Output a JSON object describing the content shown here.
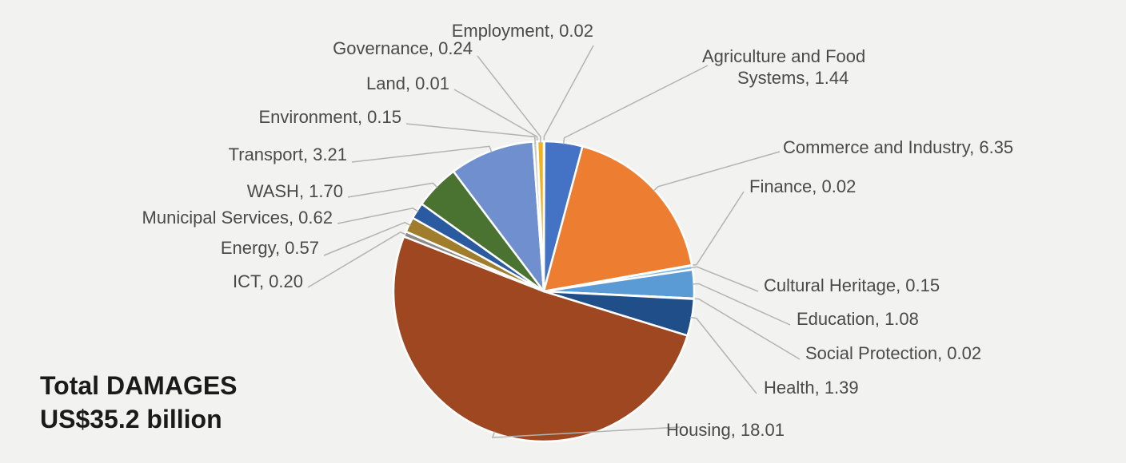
{
  "chart_data": {
    "type": "pie",
    "unit": "US$ billion",
    "slices": [
      {
        "label": "Employment",
        "value": 0.02,
        "color": "#2e5f8f"
      },
      {
        "label": "Agriculture and Food Systems",
        "value": 1.44,
        "color": "#4472c4"
      },
      {
        "label": "Commerce and Industry",
        "value": 6.35,
        "color": "#ed7d31"
      },
      {
        "label": "Finance",
        "value": 0.02,
        "color": "#ffc000"
      },
      {
        "label": "Cultural Heritage",
        "value": 0.15,
        "color": "#7fb6e3"
      },
      {
        "label": "Education",
        "value": 1.08,
        "color": "#5b9bd5"
      },
      {
        "label": "Social Protection",
        "value": 0.02,
        "color": "#b7b7b7"
      },
      {
        "label": "Health",
        "value": 1.39,
        "color": "#1f4e89"
      },
      {
        "label": "Housing",
        "value": 18.01,
        "color": "#9e4720"
      },
      {
        "label": "ICT",
        "value": 0.2,
        "color": "#8b8b8b"
      },
      {
        "label": "Energy",
        "value": 0.57,
        "color": "#a07d2c"
      },
      {
        "label": "Municipal Services",
        "value": 0.62,
        "color": "#2a5aa0"
      },
      {
        "label": "WASH",
        "value": 1.7,
        "color": "#4a7332"
      },
      {
        "label": "Transport",
        "value": 3.21,
        "color": "#6f8fcf"
      },
      {
        "label": "Environment",
        "value": 0.15,
        "color": "#c9c9c9"
      },
      {
        "label": "Land",
        "value": 0.01,
        "color": "#7a7a7a"
      },
      {
        "label": "Governance",
        "value": 0.24,
        "color": "#f0b21f"
      }
    ],
    "label_texts": [
      "Employment, 0.02",
      [
        "Agriculture and Food",
        "Systems, 1.44"
      ],
      "Commerce and Industry, 6.35",
      "Finance, 0.02",
      "Cultural Heritage, 0.15",
      "Education, 1.08",
      "Social Protection, 0.02",
      "Health, 1.39",
      "Housing, 18.01",
      "ICT, 0.20",
      "Energy, 0.57",
      "Municipal Services, 0.62",
      "WASH, 1.70",
      "Transport, 3.21",
      "Environment, 0.15",
      "Land, 0.01",
      "Governance, 0.24"
    ]
  },
  "total": {
    "line1": "Total DAMAGES",
    "line2": "US$35.2 billion"
  }
}
